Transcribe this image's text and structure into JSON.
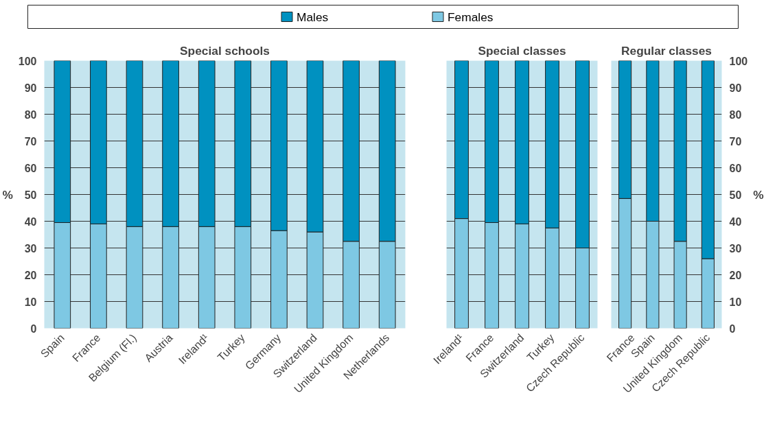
{
  "chart_data": [
    {
      "type": "bar",
      "title": "Special schools",
      "ylabel": "%",
      "stacked": true,
      "legend": "top",
      "grid": "y",
      "categories": [
        "Spain",
        "France",
        "Belgium (Fl.)",
        "Austria",
        "Ireland¹",
        "Turkey",
        "Germany",
        "Switzerland",
        "United Kingdom",
        "Netherlands"
      ],
      "ylim": [
        0,
        100
      ],
      "yticks": [
        0,
        10,
        20,
        30,
        40,
        50,
        60,
        70,
        80,
        90,
        100
      ],
      "series": [
        {
          "name": "Females",
          "color": "#7ec8e3",
          "values": [
            39.5,
            39,
            38,
            38,
            38,
            38,
            36.5,
            36,
            32.5,
            32.5
          ]
        },
        {
          "name": "Males",
          "color": "#0091c0",
          "values": [
            60.5,
            61,
            62,
            62,
            62,
            62,
            63.5,
            64,
            67.5,
            67.5
          ]
        }
      ]
    },
    {
      "type": "bar",
      "title": "Special classes",
      "stacked": true,
      "grid": "y",
      "tick_labels": "x",
      "categories": [
        "Ireland¹",
        "France",
        "Switzerland",
        "Turkey",
        "Czech Republic"
      ],
      "ylim": [
        0,
        100
      ],
      "yticks": [
        0,
        10,
        20,
        30,
        40,
        50,
        60,
        70,
        80,
        90,
        100
      ],
      "series": [
        {
          "color": "#7ec8e3",
          "values": [
            41,
            39.5,
            39,
            37.5,
            30
          ]
        },
        {
          "color": "#0091c0",
          "values": [
            59,
            60.5,
            61,
            62.5,
            70
          ]
        }
      ]
    },
    {
      "type": "bar",
      "title": "Regular classes",
      "y2label": "%",
      "stacked": true,
      "grid": "y",
      "categories": [
        "France",
        "Spain",
        "United Kingdom",
        "Czech Republic"
      ],
      "y2lim": [
        0,
        100
      ],
      "y2ticks": [
        0,
        10,
        20,
        30,
        40,
        50,
        60,
        70,
        80,
        90,
        100
      ],
      "series": [
        {
          "color": "#7ec8e3",
          "axis": "y2",
          "values": [
            48.5,
            40,
            32.5,
            26
          ]
        },
        {
          "color": "#0091c0",
          "axis": "y2",
          "values": [
            51.5,
            60,
            67.5,
            74
          ]
        }
      ]
    }
  ]
}
